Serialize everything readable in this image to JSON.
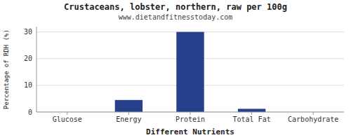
{
  "chart_data": {
    "type": "bar",
    "title": "Crustaceans, lobster, northern, raw per 100g",
    "subtitle": "www.dietandfitnesstoday.com",
    "xlabel": "Different Nutrients",
    "ylabel": "Percentage of RDH (%)",
    "categories": [
      "Glucose",
      "Energy",
      "Protein",
      "Total Fat",
      "Carbohydrate"
    ],
    "values": [
      0,
      4.5,
      30,
      1.2,
      0
    ],
    "color": "#27408B",
    "ylim": [
      0,
      32
    ],
    "yticks": [
      0,
      10,
      20,
      30
    ],
    "grid": true
  }
}
